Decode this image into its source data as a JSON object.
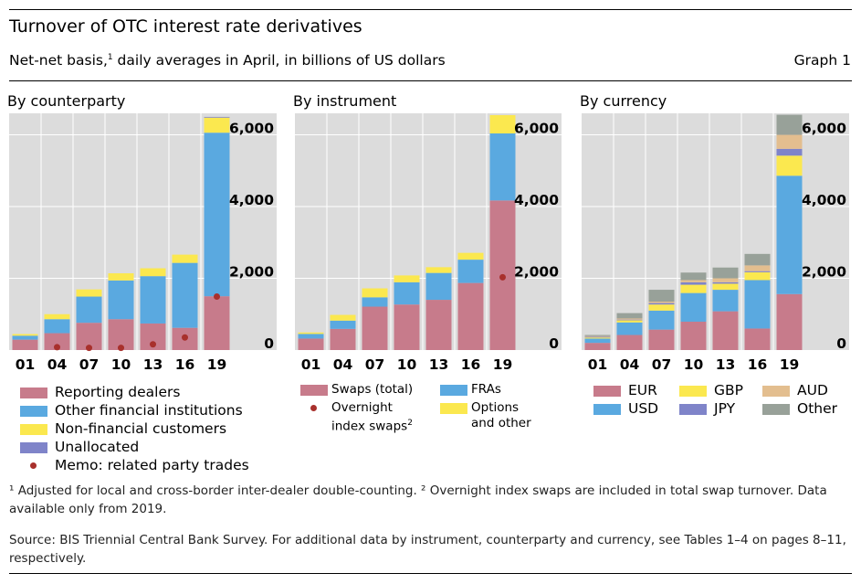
{
  "header": {
    "title": "Turnover of OTC interest rate derivatives",
    "subtitle_main": "Net-net basis,",
    "subtitle_sup": "1",
    "subtitle_rest": " daily averages in April, in billions of US dollars",
    "graph_label": "Graph 1"
  },
  "colors": {
    "reporting_dealers": "#c77b8b",
    "other_financial": "#5aa9e0",
    "non_financial": "#fbe84f",
    "unallocated": "#7f84c9",
    "memo_dot": "#a8302c",
    "swaps": "#c77b8b",
    "fras": "#5aa9e0",
    "options": "#fbe84f",
    "eur": "#c77b8b",
    "usd": "#5aa9e0",
    "gbp": "#fbe84f",
    "jpy": "#7f84c9",
    "aud": "#e3be8f",
    "other": "#98a199",
    "panel_bg": "#dcdcdc",
    "grid": "#ffffff"
  },
  "chart_data": [
    {
      "type": "bar",
      "title": "By counterparty",
      "categories": [
        "01",
        "04",
        "07",
        "10",
        "13",
        "16",
        "19"
      ],
      "ylim": [
        0,
        6600
      ],
      "yticks": [
        "0",
        "2,000",
        "4,000",
        "6,000"
      ],
      "ytick_values": [
        0,
        2000,
        4000,
        6000
      ],
      "grid": true,
      "stacked": true,
      "series": [
        {
          "name": "Reporting dealers",
          "color_key": "reporting_dealers",
          "values": [
            290,
            470,
            760,
            860,
            740,
            620,
            1500
          ]
        },
        {
          "name": "Other financial institutions",
          "color_key": "other_financial",
          "values": [
            110,
            390,
            730,
            1080,
            1320,
            1810,
            4560
          ]
        },
        {
          "name": "Non-financial customers",
          "color_key": "non_financial",
          "values": [
            45,
            140,
            200,
            200,
            220,
            230,
            420
          ]
        },
        {
          "name": "Unallocated",
          "color_key": "unallocated",
          "values": [
            0,
            0,
            0,
            0,
            0,
            0,
            20
          ]
        }
      ],
      "memo": {
        "name": "Memo: related party trades",
        "values": [
          null,
          80,
          60,
          60,
          160,
          350,
          1490
        ]
      }
    },
    {
      "type": "bar",
      "title": "By instrument",
      "categories": [
        "01",
        "04",
        "07",
        "10",
        "13",
        "16",
        "19"
      ],
      "ylim": [
        0,
        6600
      ],
      "yticks": [
        "0",
        "2,000",
        "4,000",
        "6,000"
      ],
      "ytick_values": [
        0,
        2000,
        4000,
        6000
      ],
      "grid": true,
      "stacked": true,
      "series": [
        {
          "name": "Swaps (total)",
          "color_key": "swaps",
          "values": [
            320,
            590,
            1210,
            1270,
            1400,
            1870,
            4170
          ]
        },
        {
          "name": "FRAs",
          "color_key": "fras",
          "values": [
            130,
            230,
            260,
            620,
            750,
            650,
            1870
          ]
        },
        {
          "name": "Options and other",
          "color_key": "options",
          "values": [
            40,
            160,
            250,
            190,
            160,
            190,
            510
          ]
        }
      ],
      "memo": {
        "name": "Overnight index swaps",
        "values": [
          null,
          null,
          null,
          null,
          null,
          null,
          2030
        ]
      }
    },
    {
      "type": "bar",
      "title": "By currency",
      "categories": [
        "01",
        "04",
        "07",
        "10",
        "13",
        "16",
        "19"
      ],
      "ylim": [
        0,
        6600
      ],
      "yticks": [
        "0",
        "2,000",
        "4,000",
        "6,000"
      ],
      "ytick_values": [
        0,
        2000,
        4000,
        6000
      ],
      "grid": true,
      "stacked": true,
      "series": [
        {
          "name": "EUR",
          "color_key": "eur",
          "values": [
            200,
            420,
            570,
            790,
            1080,
            600,
            1560
          ]
        },
        {
          "name": "USD",
          "color_key": "usd",
          "values": [
            120,
            350,
            530,
            800,
            600,
            1350,
            3300
          ]
        },
        {
          "name": "GBP",
          "color_key": "gbp",
          "values": [
            30,
            60,
            170,
            230,
            170,
            220,
            560
          ]
        },
        {
          "name": "JPY",
          "color_key": "jpy",
          "values": [
            20,
            20,
            40,
            70,
            40,
            30,
            190
          ]
        },
        {
          "name": "AUD",
          "color_key": "aud",
          "values": [
            20,
            30,
            40,
            60,
            110,
            160,
            390
          ]
        },
        {
          "name": "Other",
          "color_key": "other",
          "values": [
            30,
            150,
            330,
            210,
            300,
            320,
            560
          ]
        }
      ]
    }
  ],
  "legends": {
    "counterparty": {
      "reporting": "Reporting dealers",
      "other_fin": "Other financial institutions",
      "non_fin": "Non-financial customers",
      "unallocated": "Unallocated",
      "memo": "Memo: related party trades"
    },
    "instrument": {
      "swaps": "Swaps (total)",
      "fras": "FRAs",
      "ois_line1": "Overnight",
      "ois_line2": "index swaps",
      "ois_sup": "2",
      "options_line1": "Options",
      "options_line2": "and other"
    },
    "currency": {
      "eur": "EUR",
      "usd": "USD",
      "gbp": "GBP",
      "jpy": "JPY",
      "aud": "AUD",
      "other": "Other"
    }
  },
  "footnotes": {
    "note1": "¹  Adjusted for local and cross-border inter-dealer double-counting.   ²  Overnight index swaps are included in total swap turnover. Data available only from 2019.",
    "source": "Source: BIS Triennial Central Bank Survey. For additional data by instrument, counterparty and currency, see Tables 1–4 on pages 8–11, respectively."
  }
}
